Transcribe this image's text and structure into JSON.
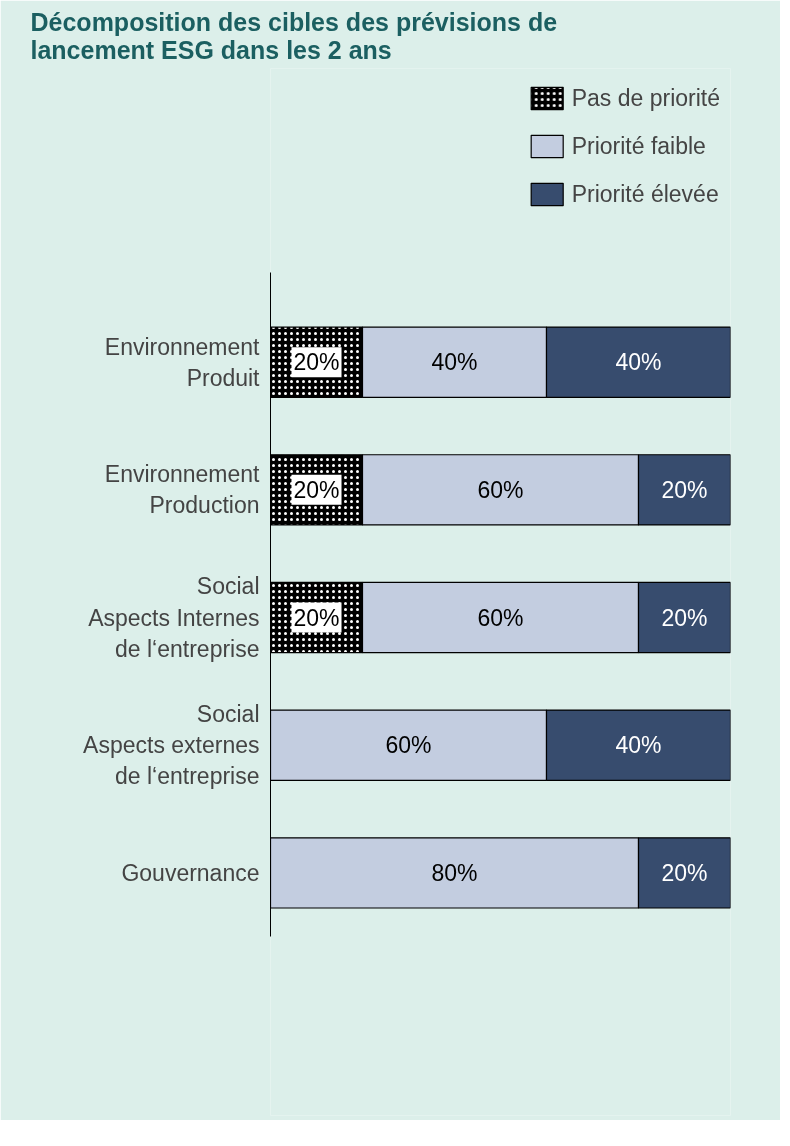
{
  "chart_data": {
    "type": "bar",
    "orientation": "horizontal",
    "stacked": true,
    "title": "Décomposition des cibles des prévisions de lancement ESG dans les 2 ans",
    "categories": [
      "Environnement\nProduit",
      "Environnement\nProduction",
      "Social\nAspects Internes\nde l‘entreprise",
      "Social\nAspects externes\nde l‘entreprise",
      "Gouvernance"
    ],
    "series": [
      {
        "name": "Pas de priorité",
        "color": "#000000",
        "values": [
          20,
          20,
          20,
          null,
          null
        ],
        "value_labels": [
          "20%",
          "20%",
          "20%",
          null,
          null
        ]
      },
      {
        "name": "Priorité faible",
        "color": "#c3cde0",
        "values": [
          40,
          60,
          60,
          60,
          80
        ],
        "value_labels": [
          "40%",
          "60%",
          "60%",
          "60%",
          "80%"
        ]
      },
      {
        "name": "Priorité élevée",
        "color": "#374c6e",
        "values": [
          40,
          20,
          20,
          40,
          20
        ],
        "value_labels": [
          "40%",
          "20%",
          "20%",
          "40%",
          "20%"
        ]
      }
    ],
    "legend": "top right",
    "grid": false
  }
}
